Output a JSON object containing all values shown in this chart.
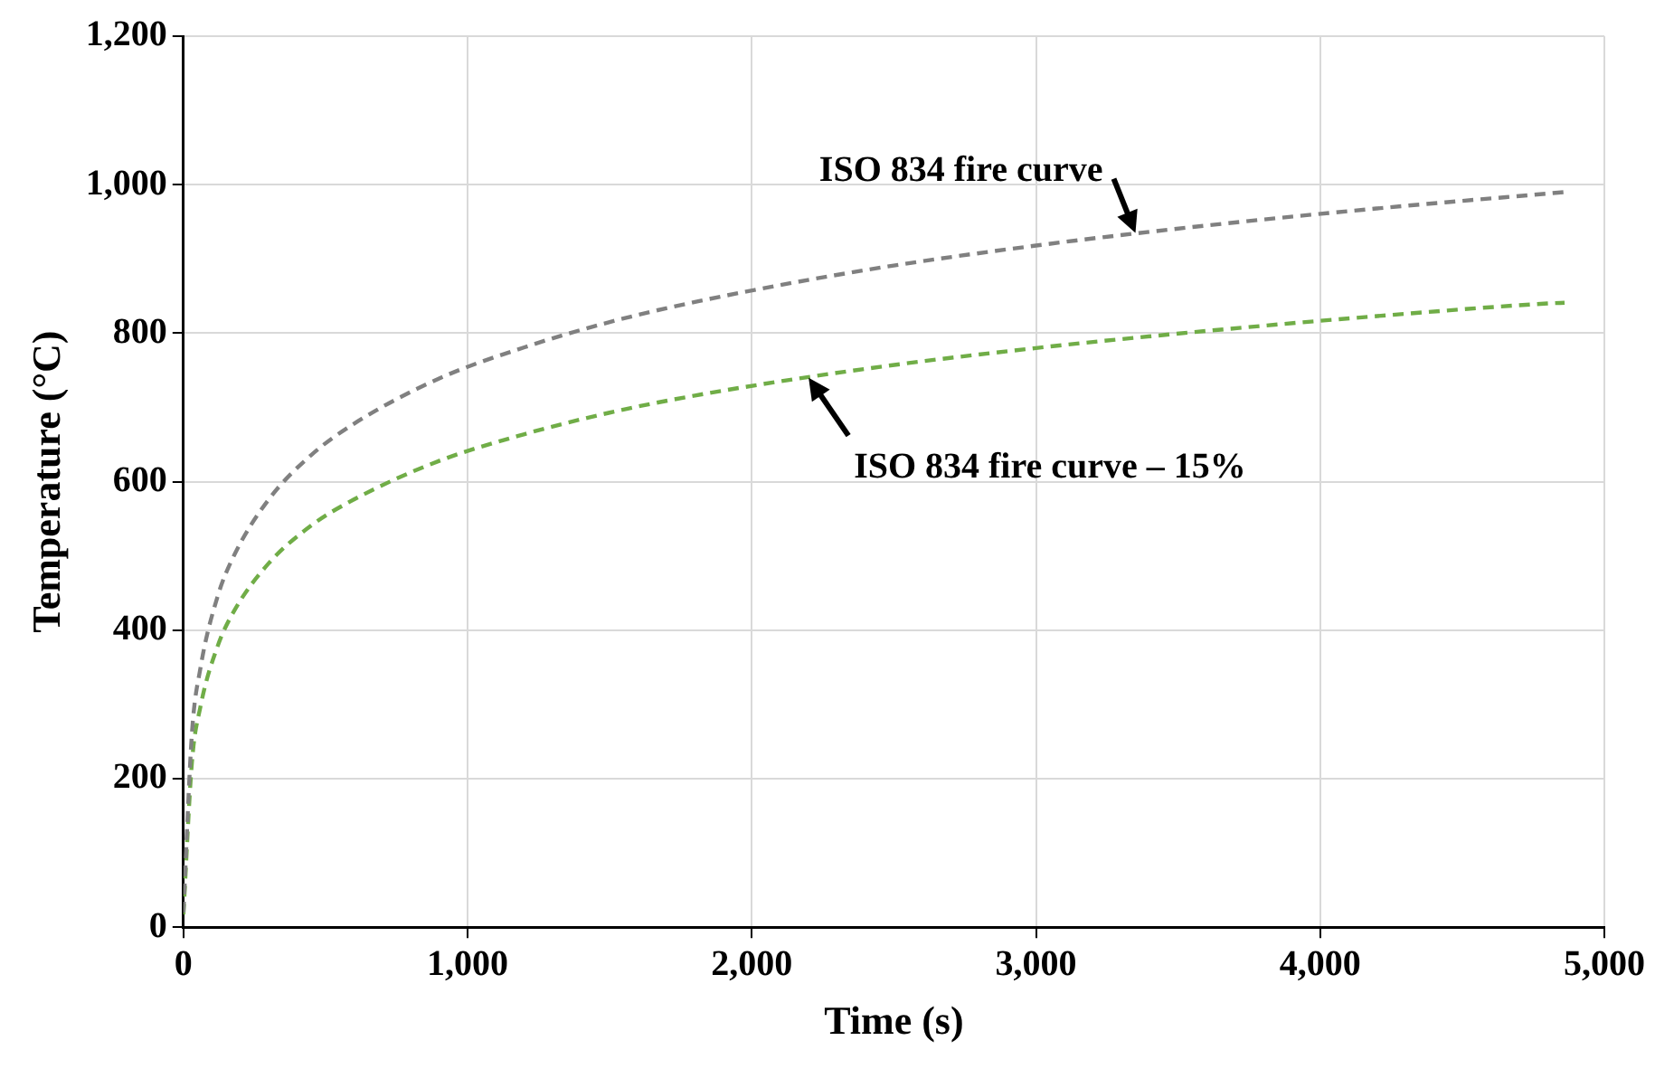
{
  "chart_data": {
    "type": "line",
    "xlabel": "Time (s)",
    "ylabel": "Temperature (°C)",
    "x": [
      0,
      30,
      60,
      120,
      180,
      300,
      450,
      600,
      900,
      1200,
      1500,
      1800,
      2400,
      3000,
      3600,
      4200,
      4800,
      4860
    ],
    "series": [
      {
        "color": "#808080",
        "values": [
          20,
          261,
          349,
          445,
          502,
          576,
          636,
          678,
          739,
          781,
          815,
          842,
          885,
          918,
          945,
          968,
          988,
          990
        ]
      },
      {
        "color": "#70ad47",
        "values": [
          17,
          222,
          297,
          378,
          427,
          490,
          541,
          576,
          628,
          664,
          693,
          716,
          752,
          780,
          803,
          823,
          840,
          841
        ]
      }
    ],
    "xlim": [
      0,
      5000
    ],
    "xticks": [
      {
        "value": 0,
        "label": "0"
      },
      {
        "value": 1000,
        "label": "1,000"
      },
      {
        "value": 2000,
        "label": "2,000"
      },
      {
        "value": 3000,
        "label": "3,000"
      },
      {
        "value": 4000,
        "label": "4,000"
      },
      {
        "value": 5000,
        "label": "5,000"
      }
    ],
    "ylim": [
      0,
      1200
    ],
    "yticks": [
      {
        "value": 0,
        "label": "0"
      },
      {
        "value": 200,
        "label": "200"
      },
      {
        "value": 400,
        "label": "400"
      },
      {
        "value": 600,
        "label": "600"
      },
      {
        "value": 800,
        "label": "800"
      },
      {
        "value": 1000,
        "label": "1,000"
      },
      {
        "value": 1200,
        "label": "1,200"
      }
    ],
    "grid": true,
    "legend": false,
    "marker": "none",
    "line_style": "dashed",
    "annotations": [
      {
        "text": "ISO 834 fire curve",
        "x": 3350,
        "y": 935
      },
      {
        "text": "ISO 834 fire curve – 15%",
        "x": 2200,
        "y": 740
      }
    ]
  }
}
